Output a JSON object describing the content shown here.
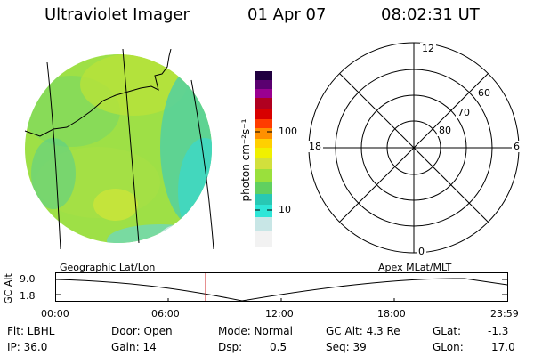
{
  "header": {
    "title": "Ultraviolet Imager",
    "date": "01 Apr 07",
    "time": "08:02:31 UT"
  },
  "colorbar": {
    "label": "photon cm⁻²s⁻¹",
    "tick_100": "100",
    "tick_10": "10",
    "scale": "log",
    "colors": [
      "#f2f2f2",
      "#c8e6e6",
      "#2ee6d8",
      "#28c8b4",
      "#60d060",
      "#9ae03c",
      "#d2e03c",
      "#f0f000",
      "#ffd000",
      "#ff9000",
      "#ff3c00",
      "#d80000",
      "#b00020",
      "#9a0090",
      "#5a0070",
      "#200040"
    ]
  },
  "polar_plot": {
    "label_top": "12",
    "label_bottom": "0",
    "label_left": "18",
    "label_right": "6",
    "ring_60": "60",
    "ring_70": "70",
    "ring_80": "80"
  },
  "altitude_plot": {
    "ylabel": "GC Alt",
    "y_high": "9.0",
    "y_low": "1.8",
    "left_caption": "Geographic Lat/Lon",
    "right_caption": "Apex MLat/MLT",
    "x_ticks": [
      "00:00",
      "06:00",
      "12:00",
      "18:00",
      "23:59"
    ],
    "marker_color": "#cc2222"
  },
  "info": {
    "flt": "Flt: LBHL",
    "ip": "IP: 36.0",
    "door": "Door: Open",
    "gain": "Gain: 14",
    "mode": "Mode: Normal",
    "dsp_label": "Dsp:",
    "dsp_value": "0.5",
    "gc_alt": "GC Alt: 4.3 Re",
    "seq": "Seq: 39",
    "glat_label": "GLat:",
    "glat_value": "-1.3",
    "glon_label": "GLon:",
    "glon_value": "17.0"
  }
}
